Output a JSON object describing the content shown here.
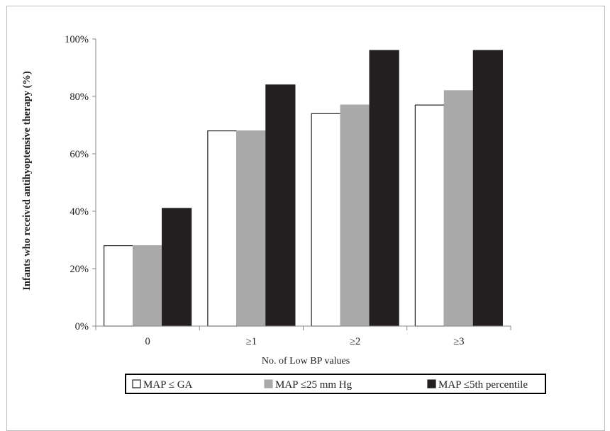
{
  "chart_data": {
    "type": "bar",
    "title": "",
    "xlabel": "No. of Low BP values",
    "ylabel": "Infants who received antihyoptensive therapy (%)",
    "categories": [
      "0",
      "≥1",
      "≥2",
      "≥3"
    ],
    "ylim": [
      0,
      100
    ],
    "yticks": [
      "0%",
      "20%",
      "40%",
      "60%",
      "80%",
      "100%"
    ],
    "ytick_values": [
      0,
      20,
      40,
      60,
      80,
      100
    ],
    "grid": false,
    "legend_position": "bottom",
    "series": [
      {
        "name": "MAP ≤ GA",
        "values": [
          28,
          68,
          74,
          77
        ],
        "color": "#ffffff",
        "stroke": "#222222"
      },
      {
        "name": "MAP ≤25 mm Hg",
        "values": [
          28,
          68,
          77,
          82
        ],
        "color": "#a9a9a9",
        "stroke": "#a9a9a9"
      },
      {
        "name": "MAP ≤5th percentile",
        "values": [
          41,
          84,
          96,
          96
        ],
        "color": "#231f20",
        "stroke": "#231f20"
      }
    ]
  }
}
